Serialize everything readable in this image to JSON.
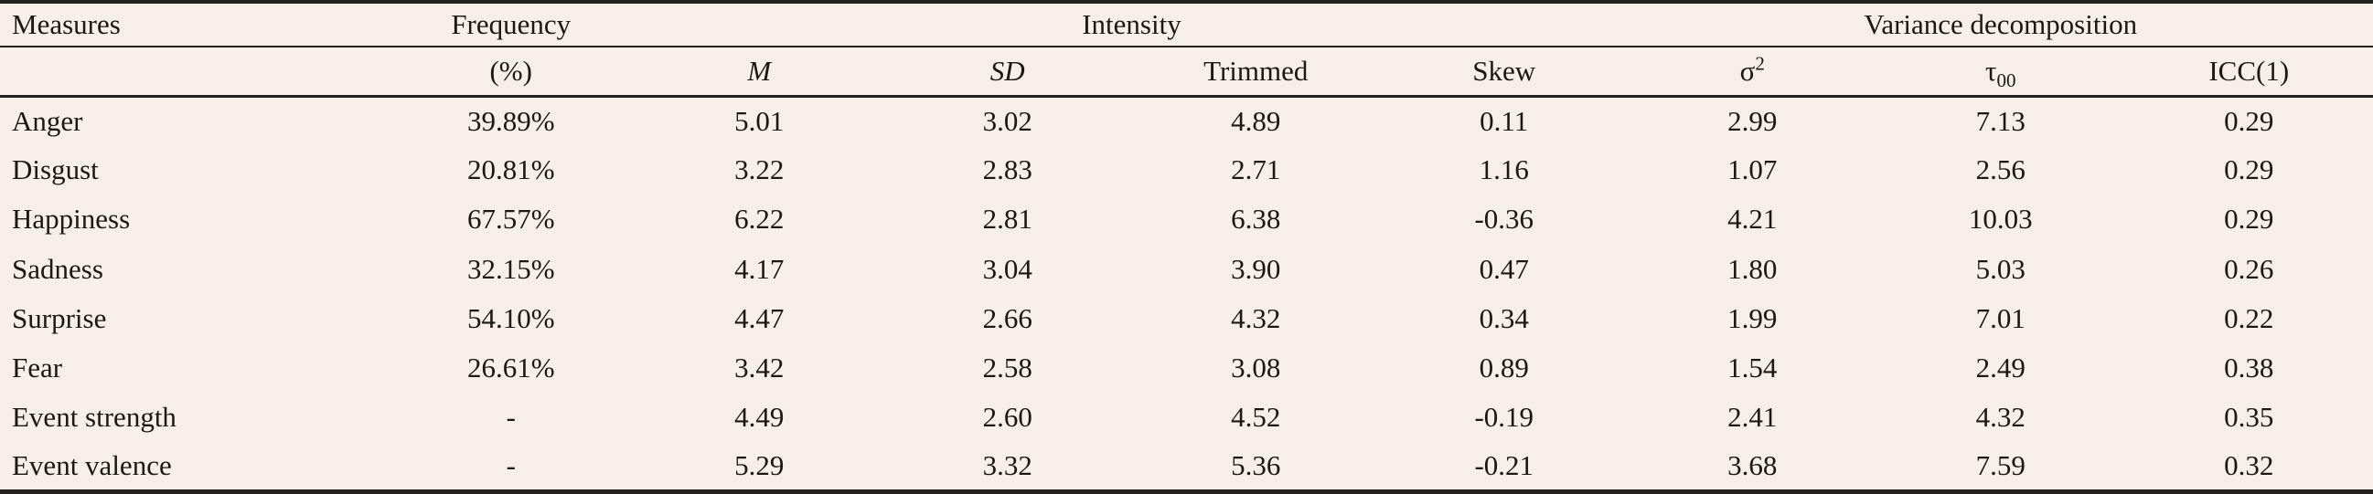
{
  "table": {
    "group_headers": {
      "measures": "Measures",
      "frequency": "Frequency",
      "intensity": "Intensity",
      "variance": "Variance decomposition"
    },
    "sub_headers": {
      "percent": "(%)",
      "m": "M",
      "sd": "SD",
      "trimmed": "Trimmed",
      "skew": "Skew",
      "sigma_base": "σ",
      "sigma_sup": "2",
      "tau_base": "τ",
      "tau_sub": "00",
      "icc": "ICC(1)"
    },
    "rows": [
      {
        "measure": "Anger",
        "values": [
          "39.89%",
          "5.01",
          "3.02",
          "4.89",
          "0.11",
          "2.99",
          "7.13",
          "0.29"
        ]
      },
      {
        "measure": "Disgust",
        "values": [
          "20.81%",
          "3.22",
          "2.83",
          "2.71",
          "1.16",
          "1.07",
          "2.56",
          "0.29"
        ]
      },
      {
        "measure": "Happiness",
        "values": [
          "67.57%",
          "6.22",
          "2.81",
          "6.38",
          "-0.36",
          "4.21",
          "10.03",
          "0.29"
        ]
      },
      {
        "measure": "Sadness",
        "values": [
          "32.15%",
          "4.17",
          "3.04",
          "3.90",
          "0.47",
          "1.80",
          "5.03",
          "0.26"
        ]
      },
      {
        "measure": "Surprise",
        "values": [
          "54.10%",
          "4.47",
          "2.66",
          "4.32",
          "0.34",
          "1.99",
          "7.01",
          "0.22"
        ]
      },
      {
        "measure": "Fear",
        "values": [
          "26.61%",
          "3.42",
          "2.58",
          "3.08",
          "0.89",
          "1.54",
          "2.49",
          "0.38"
        ]
      },
      {
        "measure": "Event strength",
        "values": [
          "-",
          "4.49",
          "2.60",
          "4.52",
          "-0.19",
          "2.41",
          "4.32",
          "0.35"
        ]
      },
      {
        "measure": "Event valence",
        "values": [
          "-",
          "5.29",
          "3.32",
          "5.36",
          "-0.21",
          "3.68",
          "7.59",
          "0.32"
        ]
      }
    ],
    "colors": {
      "background": "#f5efe7",
      "rule": "#23211d",
      "text": "#1b1814"
    }
  }
}
